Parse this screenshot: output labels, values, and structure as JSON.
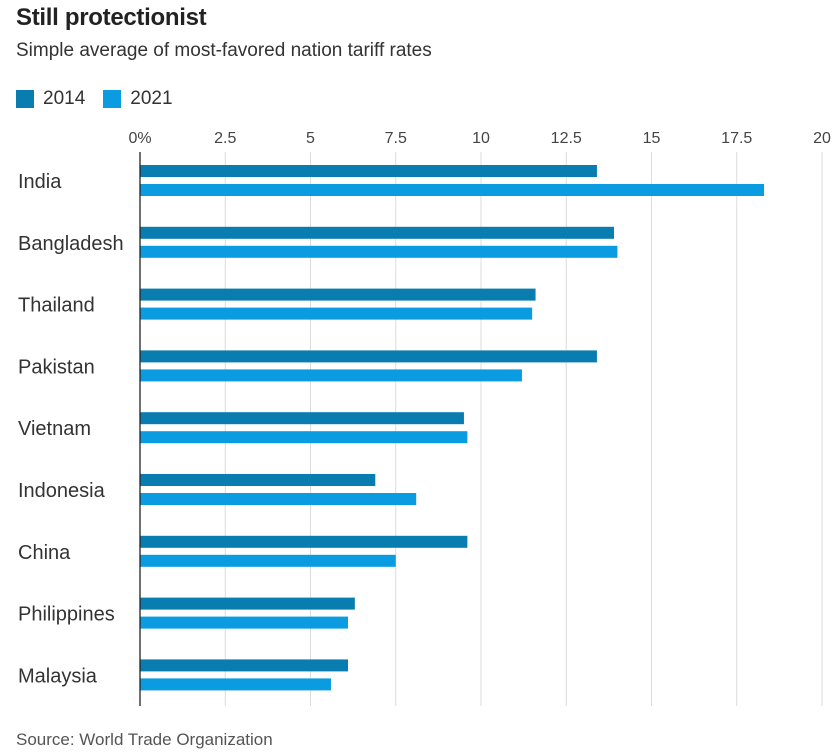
{
  "title": "Still protectionist",
  "subtitle": "Simple average of most-favored nation tariff rates",
  "source": "Source: World Trade Organization",
  "chart_data": {
    "type": "bar",
    "orientation": "horizontal",
    "categories": [
      "India",
      "Bangladesh",
      "Thailand",
      "Pakistan",
      "Vietnam",
      "Indonesia",
      "China",
      "Philippines",
      "Malaysia"
    ],
    "series": [
      {
        "name": "2014",
        "color": "#0a7db0",
        "values": [
          13.4,
          13.9,
          11.6,
          13.4,
          9.5,
          6.9,
          9.6,
          6.3,
          6.1
        ]
      },
      {
        "name": "2021",
        "color": "#0a9be0",
        "values": [
          18.3,
          14.0,
          11.5,
          11.2,
          9.6,
          8.1,
          7.5,
          6.1,
          5.6
        ]
      }
    ],
    "xlim": [
      0,
      20
    ],
    "xticks": [
      "0%",
      "2.5",
      "5",
      "7.5",
      "10",
      "12.5",
      "15",
      "17.5",
      "20"
    ],
    "xtick_values": [
      0,
      2.5,
      5,
      7.5,
      10,
      12.5,
      15,
      17.5,
      20
    ],
    "grid": true,
    "legend_position": "top-left"
  }
}
